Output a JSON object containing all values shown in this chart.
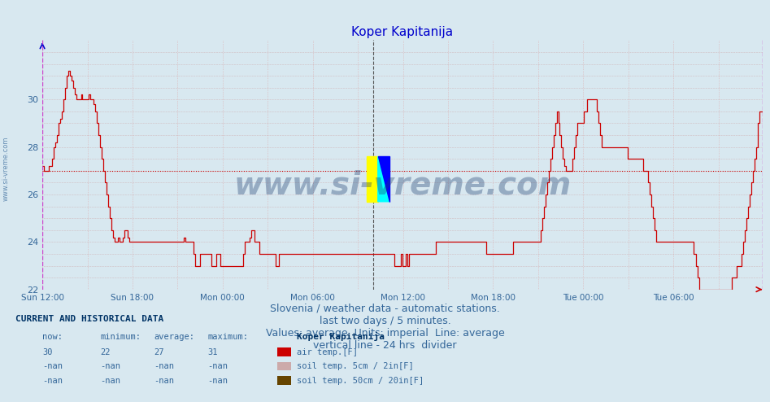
{
  "title": "Koper Kapitanija",
  "title_color": "#0000cc",
  "bg_color": "#d8e8f0",
  "plot_bg_color": "#d8e8f0",
  "line_color": "#cc0000",
  "line_width": 1.0,
  "avg_line_color": "#cc0000",
  "avg_line_value": 27.0,
  "ylim": [
    22,
    32.5
  ],
  "yticks": [
    22,
    24,
    26,
    28,
    30
  ],
  "tick_label_color": "#336699",
  "grid_h_color": "#cc9999",
  "grid_v_color": "#ddaaaa",
  "footer_text": "Slovenia / weather data - automatic stations.\nlast two days / 5 minutes.\nValues: average  Units: imperial  Line: average\nvertical line - 24 hrs  divider",
  "footer_color": "#336699",
  "footer_fontsize": 9,
  "legend_title": "Koper Kapitanija",
  "legend_entries": [
    {
      "label": "air temp.[F]",
      "color": "#cc0000"
    },
    {
      "label": "soil temp. 5cm / 2in[F]",
      "color": "#ccaaaa"
    },
    {
      "label": "soil temp. 50cm / 20in[F]",
      "color": "#664400"
    }
  ],
  "current_data": {
    "now": 30,
    "minimum": 22,
    "average": 27,
    "maximum": 31
  },
  "watermark": "www.si-vreme.com",
  "watermark_color": "#1a3a6e",
  "watermark_alpha": 0.35,
  "left_vline_color": "#cc44cc",
  "right_vline_color": "#cc44cc",
  "sample_values": [
    27.2,
    27.0,
    27.0,
    27.0,
    27.2,
    27.2,
    27.5,
    28.0,
    28.2,
    28.5,
    29.0,
    29.2,
    29.5,
    30.0,
    30.5,
    31.0,
    31.2,
    31.0,
    30.8,
    30.5,
    30.2,
    30.0,
    30.0,
    30.0,
    30.2,
    30.0,
    30.0,
    30.0,
    30.0,
    30.2,
    30.0,
    30.0,
    29.8,
    29.5,
    29.0,
    28.5,
    28.0,
    27.5,
    27.0,
    26.5,
    26.0,
    25.5,
    25.0,
    24.5,
    24.2,
    24.0,
    24.0,
    24.2,
    24.0,
    24.0,
    24.2,
    24.5,
    24.5,
    24.2,
    24.0,
    24.0,
    24.0,
    24.0,
    24.0,
    24.0,
    24.0,
    24.0,
    24.0,
    24.0,
    24.0,
    24.0,
    24.0,
    24.0,
    24.0,
    24.0,
    24.0,
    24.0,
    24.0,
    24.0,
    24.0,
    24.0,
    24.0,
    24.0,
    24.0,
    24.0,
    24.0,
    24.0,
    24.0,
    24.0,
    24.0,
    24.0,
    24.0,
    24.0,
    24.2,
    24.0,
    24.0,
    24.0,
    24.0,
    24.0,
    23.5,
    23.0,
    23.0,
    23.0,
    23.5,
    23.5,
    23.5,
    23.5,
    23.5,
    23.5,
    23.5,
    23.0,
    23.0,
    23.0,
    23.5,
    23.5,
    23.5,
    23.0,
    23.0,
    23.0,
    23.0,
    23.0,
    23.0,
    23.0,
    23.0,
    23.0,
    23.0,
    23.0,
    23.0,
    23.0,
    23.0,
    23.5,
    24.0,
    24.0,
    24.0,
    24.2,
    24.5,
    24.5,
    24.0,
    24.0,
    24.0,
    23.5,
    23.5,
    23.5,
    23.5,
    23.5,
    23.5,
    23.5,
    23.5,
    23.5,
    23.5,
    23.0,
    23.0,
    23.5,
    23.5,
    23.5,
    23.5,
    23.5,
    23.5,
    23.5,
    23.5,
    23.5,
    23.5,
    23.5,
    23.5,
    23.5,
    23.5,
    23.5,
    23.5,
    23.5,
    23.5,
    23.5,
    23.5,
    23.5,
    23.5,
    23.5,
    23.5,
    23.5,
    23.5,
    23.5,
    23.5,
    23.5,
    23.5,
    23.5,
    23.5,
    23.5,
    23.5,
    23.5,
    23.5,
    23.5,
    23.5,
    23.5,
    23.5,
    23.5,
    23.5,
    23.5,
    23.5,
    23.5,
    23.5,
    23.5,
    23.5,
    23.5,
    23.5,
    23.5,
    23.5,
    23.5,
    23.5,
    23.5,
    23.5,
    23.5,
    23.5,
    23.5,
    23.5,
    23.5,
    23.5,
    23.5,
    23.5,
    23.5,
    23.5,
    23.5,
    23.5,
    23.5,
    23.5,
    23.5,
    23.5,
    23.0,
    23.0,
    23.0,
    23.0,
    23.5,
    23.0,
    23.0,
    23.5,
    23.0,
    23.5,
    23.5,
    23.5,
    23.5,
    23.5,
    23.5,
    23.5,
    23.5,
    23.5,
    23.5,
    23.5,
    23.5,
    23.5,
    23.5,
    23.5,
    23.5,
    23.5,
    24.0,
    24.0,
    24.0,
    24.0,
    24.0,
    24.0,
    24.0,
    24.0,
    24.0,
    24.0,
    24.0,
    24.0,
    24.0,
    24.0,
    24.0,
    24.0,
    24.0,
    24.0,
    24.0,
    24.0,
    24.0,
    24.0,
    24.0,
    24.0,
    24.0,
    24.0,
    24.0,
    24.0,
    24.0,
    24.0,
    24.0,
    23.5,
    23.5,
    23.5,
    23.5,
    23.5,
    23.5,
    23.5,
    23.5,
    23.5,
    23.5,
    23.5,
    23.5,
    23.5,
    23.5,
    23.5,
    23.5,
    23.5,
    24.0,
    24.0,
    24.0,
    24.0,
    24.0,
    24.0,
    24.0,
    24.0,
    24.0,
    24.0,
    24.0,
    24.0,
    24.0,
    24.0,
    24.0,
    24.0,
    24.0,
    24.5,
    25.0,
    25.5,
    26.0,
    26.5,
    27.0,
    27.5,
    28.0,
    28.5,
    29.0,
    29.5,
    29.0,
    28.5,
    28.0,
    27.5,
    27.2,
    27.0,
    27.0,
    27.0,
    27.0,
    27.5,
    28.0,
    28.5,
    29.0,
    29.0,
    29.0,
    29.0,
    29.5,
    29.5,
    30.0,
    30.0,
    30.0,
    30.0,
    30.0,
    30.0,
    29.5,
    29.0,
    28.5,
    28.0,
    28.0,
    28.0,
    28.0,
    28.0,
    28.0,
    28.0,
    28.0,
    28.0,
    28.0,
    28.0,
    28.0,
    28.0,
    28.0,
    28.0,
    28.0,
    27.5,
    27.5,
    27.5,
    27.5,
    27.5,
    27.5,
    27.5,
    27.5,
    27.5,
    27.5,
    27.0,
    27.0,
    27.0,
    26.5,
    26.0,
    25.5,
    25.0,
    24.5,
    24.0,
    24.0,
    24.0,
    24.0,
    24.0,
    24.0,
    24.0,
    24.0,
    24.0,
    24.0,
    24.0,
    24.0,
    24.0,
    24.0,
    24.0,
    24.0,
    24.0,
    24.0,
    24.0,
    24.0,
    24.0,
    24.0,
    24.0,
    23.5,
    23.5,
    23.0,
    22.5,
    22.0,
    22.0,
    22.0,
    22.0,
    22.0,
    22.0,
    22.0,
    22.0,
    22.0,
    22.0,
    22.0,
    22.0,
    22.0,
    22.0,
    22.0,
    22.0,
    22.0,
    22.0,
    22.0,
    22.0,
    22.5,
    22.5,
    22.5,
    23.0,
    23.0,
    23.0,
    23.5,
    24.0,
    24.5,
    25.0,
    25.5,
    26.0,
    26.5,
    27.0,
    27.5,
    28.0,
    29.0,
    29.5,
    29.5,
    29.5
  ]
}
